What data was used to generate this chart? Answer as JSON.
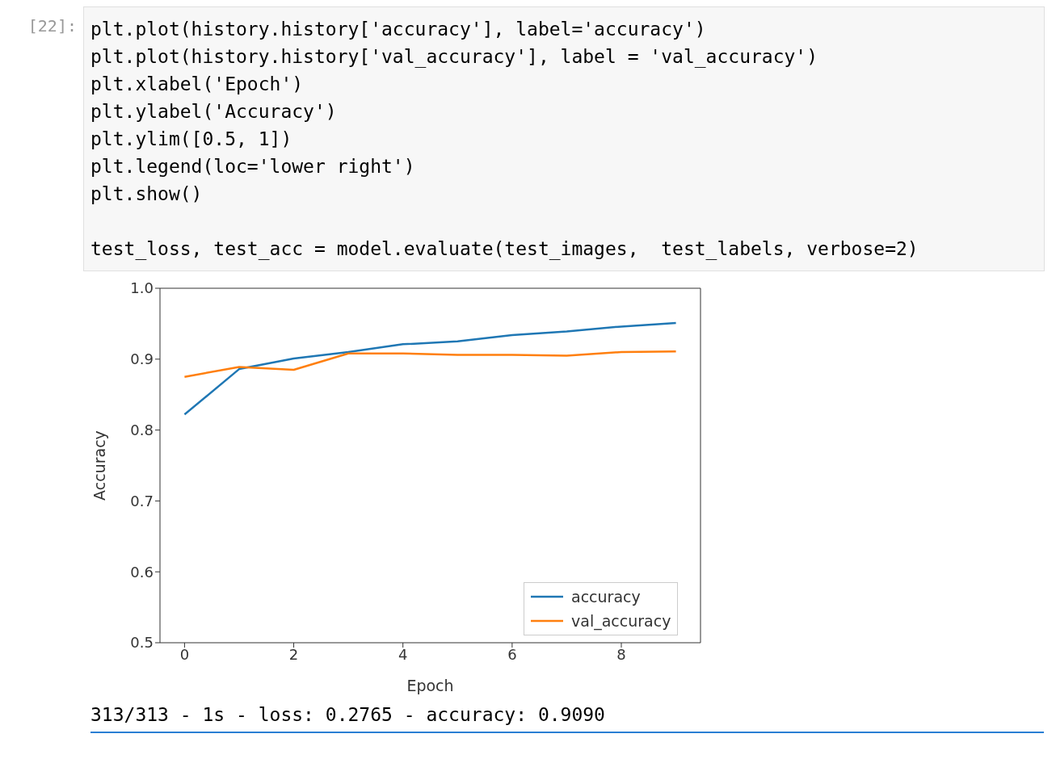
{
  "chart_data": {
    "type": "line",
    "xlabel": "Epoch",
    "ylabel": "Accuracy",
    "x": [
      0,
      1,
      2,
      3,
      4,
      5,
      6,
      7,
      8,
      9
    ],
    "series": [
      {
        "name": "accuracy",
        "color": "#1f77b4",
        "values": [
          0.822,
          0.886,
          0.901,
          0.91,
          0.921,
          0.925,
          0.934,
          0.939,
          0.946,
          0.951
        ]
      },
      {
        "name": "val_accuracy",
        "color": "#ff7f0e",
        "values": [
          0.875,
          0.889,
          0.885,
          0.908,
          0.908,
          0.906,
          0.906,
          0.905,
          0.91,
          0.911
        ]
      }
    ],
    "xlim": [
      -0.45,
      9.45
    ],
    "xticks": [
      0,
      2,
      4,
      6,
      8
    ],
    "ylim": [
      0.5,
      1
    ],
    "yticks": [
      0.5,
      0.6,
      0.7,
      0.8,
      0.9,
      {
        "value": 1,
        "label": "1.0"
      }
    ],
    "legend": "bottom right",
    "marker": "none",
    "line_style": "solid",
    "annotations": [
      "[22]:",
      "plt.plot(history.history['accuracy'], label='accuracy')",
      "plt.plot(history.history['val_accuracy'], label = 'val_accuracy')",
      "plt.xlabel('Epoch')",
      "plt.ylabel('Accuracy')",
      "plt.ylim([0.5, 1])",
      "plt.legend(loc='lower right')",
      "plt.show()",
      "test_loss, test_acc = model.evaluate(test_images,  test_labels, verbose=2)",
      "313/313 - 1s - loss: 0.2765 - accuracy: 0.9090"
    ]
  }
}
